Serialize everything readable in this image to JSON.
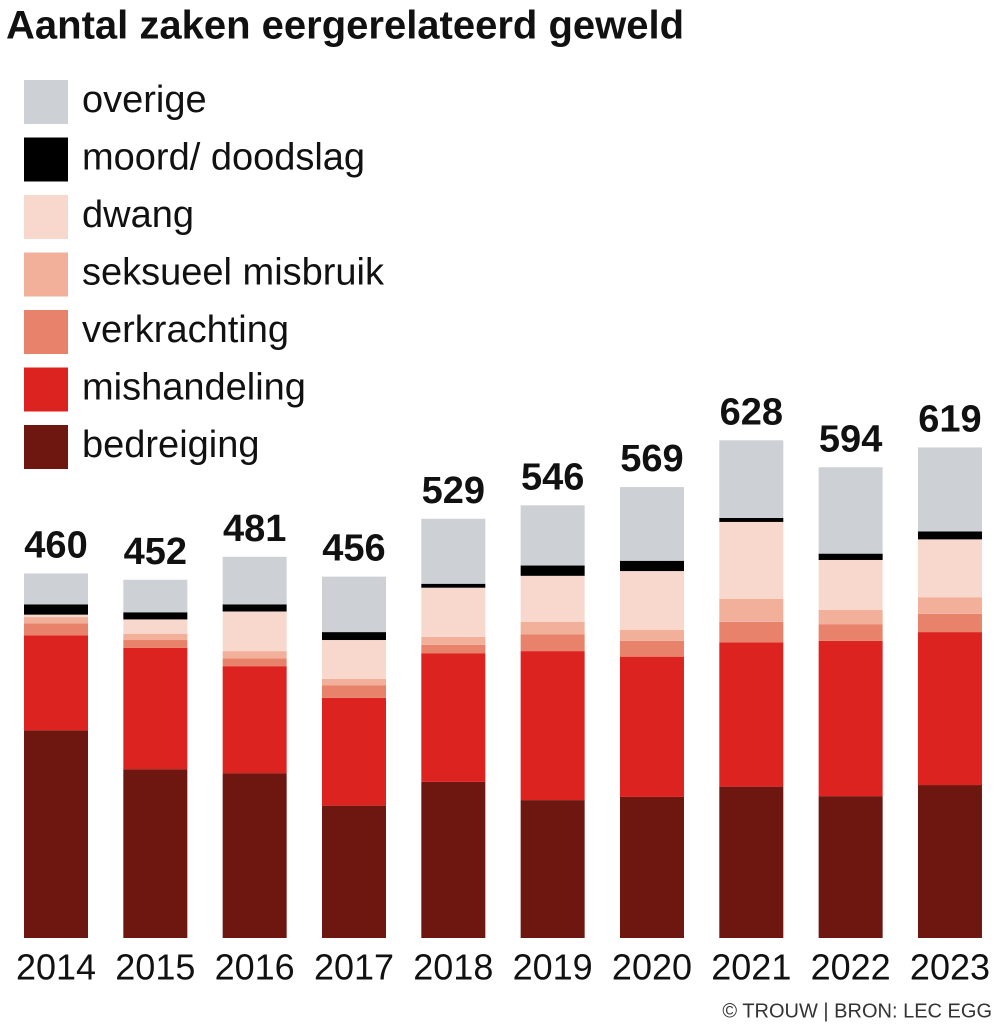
{
  "chart_data": {
    "type": "stacked_bar",
    "title": "Aantal zaken eergerelateerd geweld",
    "source": "© TROUW | BRON: LEC EGG",
    "categories": [
      "2014",
      "2015",
      "2016",
      "2017",
      "2018",
      "2019",
      "2020",
      "2021",
      "2022",
      "2023"
    ],
    "totals": [
      460,
      452,
      481,
      456,
      529,
      546,
      569,
      628,
      594,
      619
    ],
    "series": [
      {
        "name": "bedreiging",
        "color": "#6e1610",
        "values": [
          262,
          213,
          208,
          167,
          197,
          174,
          178,
          191,
          179,
          193
        ]
      },
      {
        "name": "mishandeling",
        "color": "#dc2320",
        "values": [
          120,
          153,
          135,
          136,
          162,
          188,
          177,
          182,
          196,
          193
        ]
      },
      {
        "name": "verkrachting",
        "color": "#e9826a",
        "values": [
          15,
          10,
          10,
          16,
          11,
          21,
          20,
          26,
          21,
          23
        ]
      },
      {
        "name": "seksueel misbruik",
        "color": "#f2b09a",
        "values": [
          8,
          8,
          9,
          8,
          10,
          16,
          14,
          29,
          18,
          21
        ]
      },
      {
        "name": "dwang",
        "color": "#f8d8cc",
        "values": [
          3,
          18,
          50,
          49,
          62,
          58,
          74,
          97,
          63,
          73
        ]
      },
      {
        "name": "moord/ doodslag",
        "color": "#000000",
        "values": [
          13,
          9,
          9,
          10,
          5,
          13,
          13,
          5,
          8,
          10
        ]
      },
      {
        "name": "overige",
        "color": "#cdd0d4",
        "values": [
          39,
          41,
          60,
          70,
          82,
          76,
          93,
          98,
          109,
          106
        ]
      }
    ]
  }
}
